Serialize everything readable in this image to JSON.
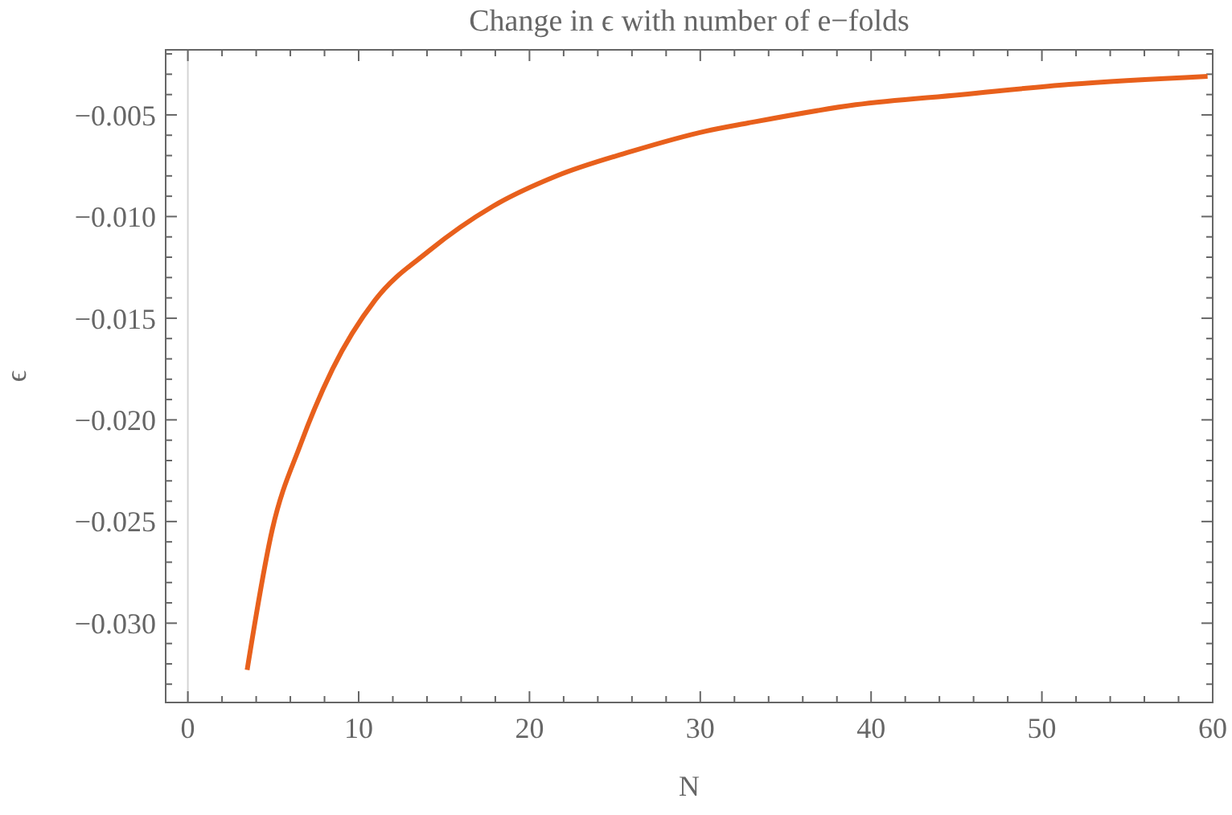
{
  "chart_data": {
    "type": "line",
    "title": "Change in ϵ with number of e−folds",
    "xlabel": "N",
    "ylabel": "ϵ",
    "xlim": [
      -1.3,
      60
    ],
    "ylim": [
      -0.0339,
      -0.0018
    ],
    "xticks": [
      0,
      {
        "value": 2,
        "label": null
      },
      {
        "value": 4,
        "label": null
      },
      {
        "value": 6,
        "label": null
      },
      {
        "value": 8,
        "label": null
      },
      10,
      {
        "value": 12,
        "label": null
      },
      {
        "value": 14,
        "label": null
      },
      {
        "value": 16,
        "label": null
      },
      {
        "value": 18,
        "label": null
      },
      20,
      {
        "value": 22,
        "label": null
      },
      {
        "value": 24,
        "label": null
      },
      {
        "value": 26,
        "label": null
      },
      {
        "value": 28,
        "label": null
      },
      30,
      {
        "value": 32,
        "label": null
      },
      {
        "value": 34,
        "label": null
      },
      {
        "value": 36,
        "label": null
      },
      {
        "value": 38,
        "label": null
      },
      40,
      {
        "value": 42,
        "label": null
      },
      {
        "value": 44,
        "label": null
      },
      {
        "value": 46,
        "label": null
      },
      {
        "value": 48,
        "label": null
      },
      50,
      {
        "value": 52,
        "label": null
      },
      {
        "value": 54,
        "label": null
      },
      {
        "value": 56,
        "label": null
      },
      {
        "value": 58,
        "label": null
      },
      60
    ],
    "yticks": [
      {
        "value": -0.033,
        "label": null
      },
      {
        "value": -0.032,
        "label": null
      },
      {
        "value": -0.031,
        "label": null
      },
      {
        "value": -0.03,
        "label": "−0.030"
      },
      {
        "value": -0.029,
        "label": null
      },
      {
        "value": -0.028,
        "label": null
      },
      {
        "value": -0.027,
        "label": null
      },
      {
        "value": -0.026,
        "label": null
      },
      {
        "value": -0.025,
        "label": "−0.025"
      },
      {
        "value": -0.024,
        "label": null
      },
      {
        "value": -0.023,
        "label": null
      },
      {
        "value": -0.022,
        "label": null
      },
      {
        "value": -0.021,
        "label": null
      },
      {
        "value": -0.02,
        "label": "−0.020"
      },
      {
        "value": -0.019,
        "label": null
      },
      {
        "value": -0.018,
        "label": null
      },
      {
        "value": -0.017,
        "label": null
      },
      {
        "value": -0.016,
        "label": null
      },
      {
        "value": -0.015,
        "label": "−0.015"
      },
      {
        "value": -0.014,
        "label": null
      },
      {
        "value": -0.013,
        "label": null
      },
      {
        "value": -0.012,
        "label": null
      },
      {
        "value": -0.011,
        "label": null
      },
      {
        "value": -0.01,
        "label": "−0.010"
      },
      {
        "value": -0.009,
        "label": null
      },
      {
        "value": -0.008,
        "label": null
      },
      {
        "value": -0.007,
        "label": null
      },
      {
        "value": -0.006,
        "label": null
      },
      {
        "value": -0.005,
        "label": "−0.005"
      },
      {
        "value": -0.004,
        "label": null
      },
      {
        "value": -0.003,
        "label": null
      },
      {
        "value": -0.002,
        "label": null
      }
    ],
    "ref_lines": [
      {
        "axis": "x",
        "value": 0,
        "color": "#d4d4d4"
      }
    ],
    "grid": false,
    "marker": "none",
    "line_style": "solid",
    "series": [
      {
        "color": "#e8601c",
        "x": [
          3.47,
          4.94,
          6.6,
          8.47,
          10.97,
          14.1,
          17.85,
          21.6,
          25.96,
          30.34,
          32.8,
          39.1,
          45.3,
          51.6,
          59.7
        ],
        "values": [
          -0.0323,
          -0.0254,
          -0.0212,
          -0.0175,
          -0.0141,
          -0.0117,
          -0.0095,
          -0.008,
          -0.0068,
          -0.0058,
          -0.0054,
          -0.0045,
          -0.004,
          -0.0035,
          -0.0031
        ]
      }
    ]
  }
}
